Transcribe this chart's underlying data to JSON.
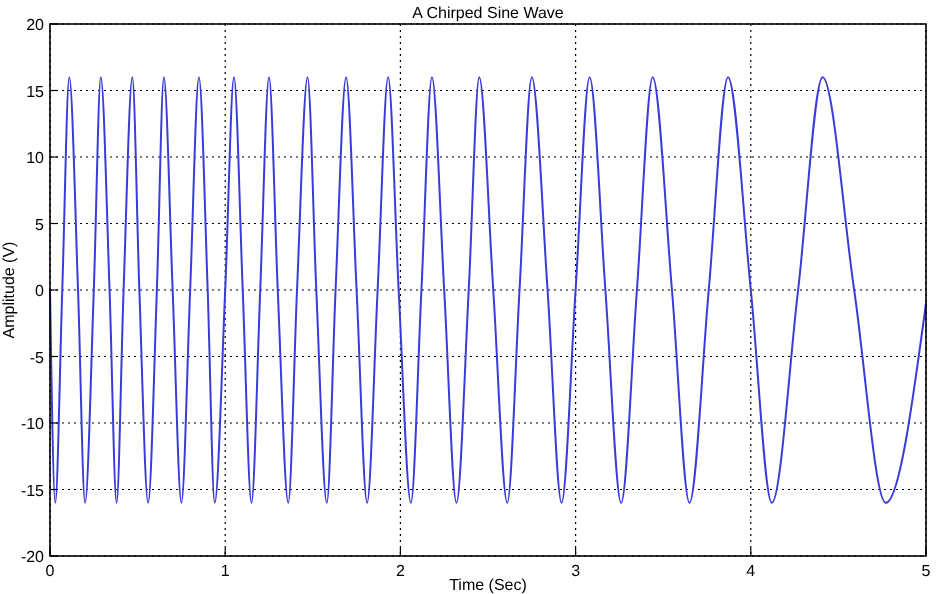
{
  "chart_data": {
    "type": "line",
    "title": "A Chirped Sine Wave",
    "xlabel": "Time (Sec)",
    "ylabel": "Amplitude (V)",
    "x": [
      0,
      0.03,
      0.07,
      0.11,
      0.16,
      0.2,
      0.25,
      0.29,
      0.34,
      0.38,
      0.42,
      0.47,
      0.51,
      0.56,
      0.61,
      0.65,
      0.7,
      0.75,
      0.8,
      0.85,
      0.9,
      0.94,
      1.0,
      1.05,
      1.1,
      1.15,
      1.2,
      1.25,
      1.3,
      1.36,
      1.41,
      1.47,
      1.52,
      1.58,
      1.63,
      1.69,
      1.75,
      1.81,
      1.87,
      1.93,
      1.99,
      2.06,
      2.12,
      2.18,
      2.25,
      2.32,
      2.39,
      2.45,
      2.53,
      2.61,
      2.68,
      2.75,
      2.84,
      2.92,
      3.0,
      3.08,
      3.17,
      3.26,
      3.35,
      3.44,
      3.55,
      3.65,
      3.76,
      3.87,
      4.0,
      4.12,
      4.27,
      4.41,
      4.59,
      4.77,
      5.0
    ],
    "series": [
      {
        "color": "#3b3bd9",
        "values": [
          0,
          -16,
          0,
          16,
          0,
          -16,
          0,
          16,
          0,
          -16,
          0,
          16,
          0,
          -16,
          0,
          16,
          0,
          -16,
          0,
          16,
          0,
          -16,
          0,
          16,
          0,
          -16,
          0,
          16,
          0,
          -16,
          0,
          16,
          0,
          -16,
          0,
          16,
          0,
          -16,
          0,
          16,
          0,
          -16,
          0,
          16,
          0,
          -16,
          0,
          16,
          0,
          -16,
          0,
          16,
          0,
          -16,
          0,
          16,
          0,
          -16,
          0,
          16,
          0,
          -16,
          0,
          16,
          0,
          -16,
          0,
          16,
          0,
          -16,
          -1
        ]
      }
    ],
    "xlim": [
      0,
      5
    ],
    "xticks": [
      0,
      1,
      2,
      3,
      4,
      5
    ],
    "ylim": [
      -20,
      20
    ],
    "yticks": [
      -20,
      -15,
      -10,
      -5,
      0,
      5,
      10,
      15,
      20
    ],
    "grid": true,
    "marker": "none",
    "line_style": "solid"
  }
}
